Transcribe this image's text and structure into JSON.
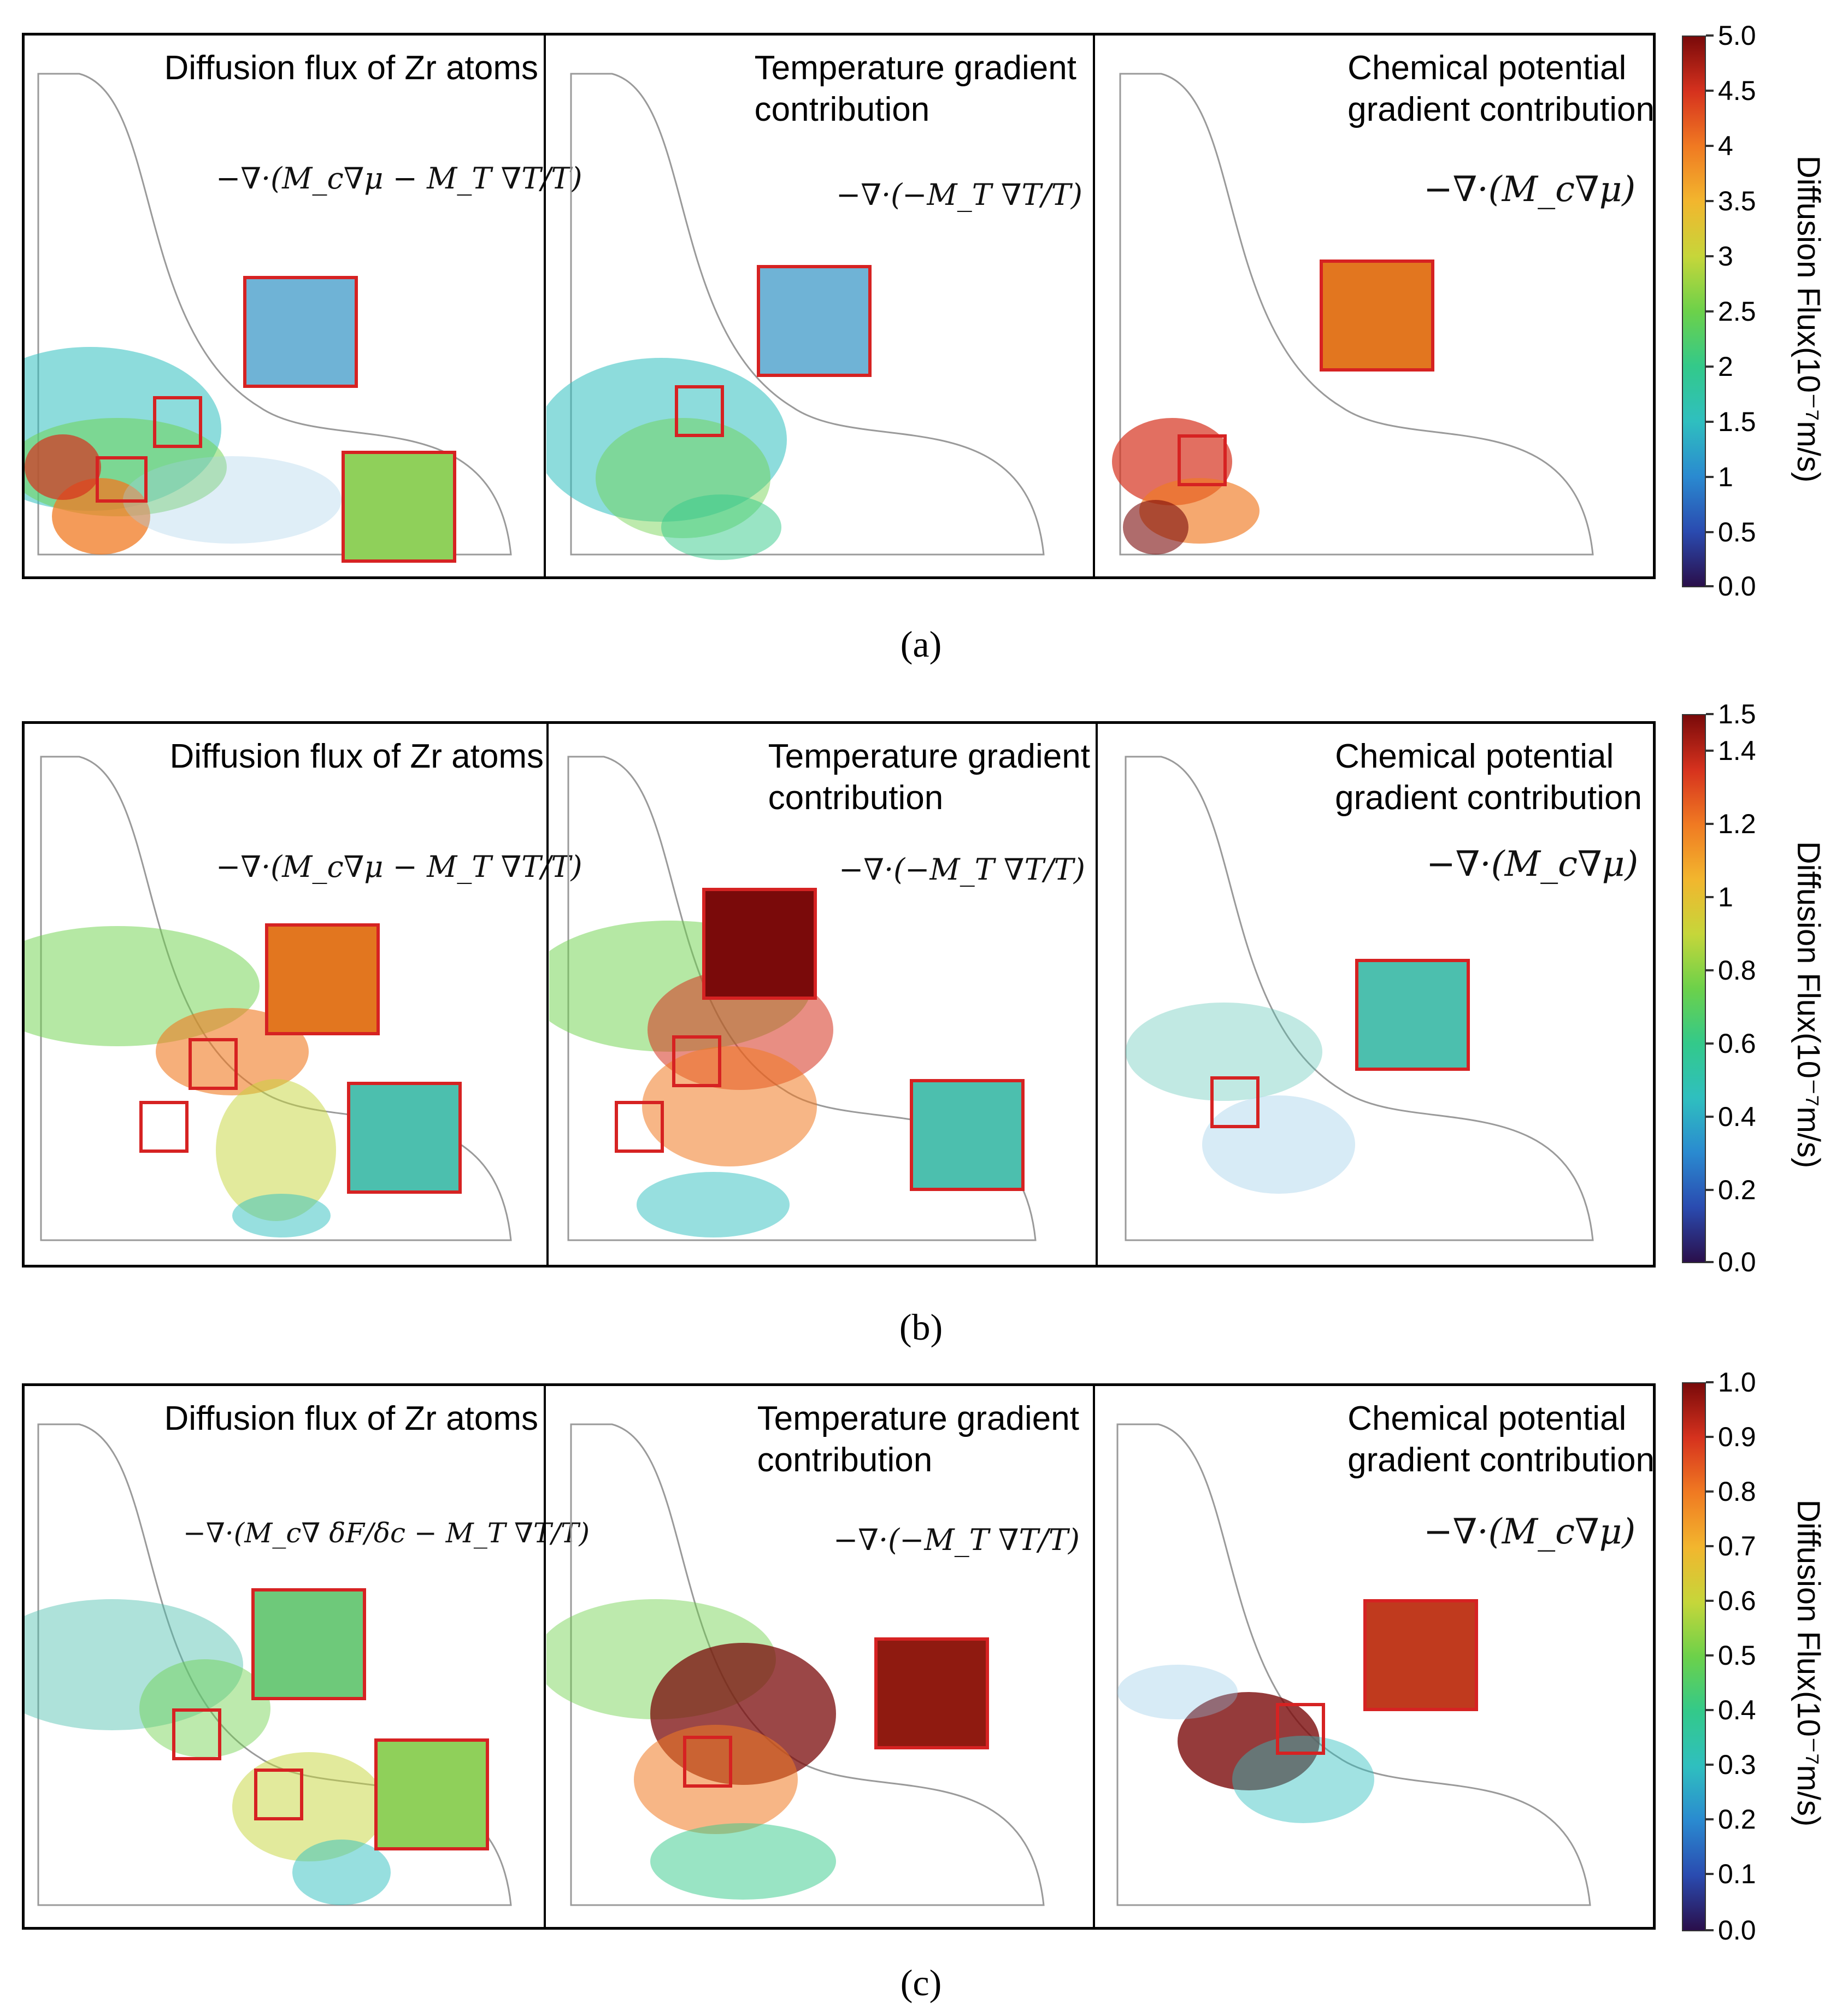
{
  "figure": {
    "colors": {
      "frame": "#000000",
      "zoom": "#d62222",
      "outline": "#9a9a9a"
    },
    "panel_titles": {
      "flux": "Diffusion flux of Zr atoms",
      "temp_l1": "Temperature gradient",
      "temp_l2": "contribution",
      "chem_l1": "Chemical potential",
      "chem_l2": "gradient contribution"
    },
    "equations": {
      "flux_ab": "−∇·(M_c∇μ − M_T ∇T/T)",
      "flux_c": "−∇·(M_c∇ δF/δc − M_T ∇T/T)",
      "temp": "−∇·(−M_T ∇T/T)",
      "chem": "−∇·(M_c∇μ)"
    },
    "rows": [
      {
        "label": "(a)",
        "colorbar": {
          "title": "Diffusion Flux(10⁻⁷m/s)",
          "ticks": [
            "5.0",
            "4.5",
            "4",
            "3.5",
            "3",
            "2.5",
            "2",
            "1.5",
            "1",
            "0.5",
            "0.0"
          ],
          "range": [
            0.0,
            5.0
          ]
        }
      },
      {
        "label": "(b)",
        "colorbar": {
          "title": "Diffusion Flux(10⁻⁷m/s)",
          "ticks": [
            "1.5",
            "1.4",
            "1.2",
            "1",
            "0.8",
            "0.6",
            "0.4",
            "0.2",
            "0.0"
          ],
          "range": [
            0.0,
            1.5
          ]
        }
      },
      {
        "label": "(c)",
        "colorbar": {
          "title": "Diffusion Flux(10⁻⁷m/s)",
          "ticks": [
            "1.0",
            "0.9",
            "0.8",
            "0.7",
            "0.6",
            "0.5",
            "0.4",
            "0.3",
            "0.2",
            "0.1",
            "0.0"
          ],
          "range": [
            0.0,
            1.0
          ]
        }
      }
    ]
  }
}
